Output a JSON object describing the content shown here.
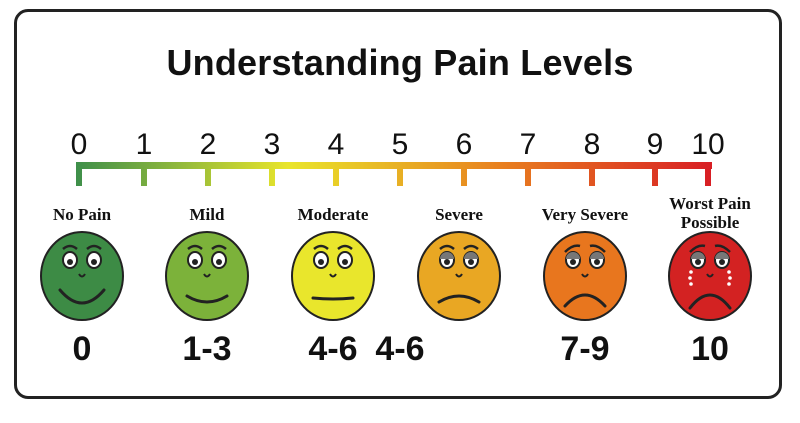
{
  "title": "Understanding Pain Levels",
  "scale": {
    "ticks": [
      "0",
      "1",
      "2",
      "3",
      "4",
      "5",
      "6",
      "7",
      "8",
      "9",
      "10"
    ],
    "gradient_colors": [
      "#3e8f4a",
      "#e9e52b",
      "#e8801f",
      "#d81e24"
    ]
  },
  "faces": [
    {
      "label": [
        "No Pain"
      ],
      "range": "0",
      "color": "#3d8b45",
      "expression": "big-smile"
    },
    {
      "label": [
        "Mild"
      ],
      "range": "1-3",
      "color": "#7cb23a",
      "expression": "smile"
    },
    {
      "label": [
        "Moderate"
      ],
      "range": "4-6",
      "color": "#e9e62c",
      "expression": "neutral"
    },
    {
      "label": [
        "Severe"
      ],
      "range": "",
      "color": "#e9a723",
      "expression": "slight-frown"
    },
    {
      "label": [
        "Very Severe"
      ],
      "range": "7-9",
      "color": "#e8761e",
      "expression": "frown"
    },
    {
      "label": [
        "Worst Pain",
        "Possible"
      ],
      "range": "10",
      "color": "#d32222",
      "expression": "crying"
    }
  ],
  "middle_range": "4-6"
}
